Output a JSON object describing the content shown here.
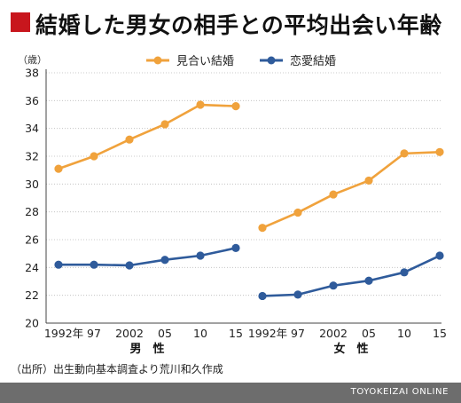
{
  "header": {
    "title": "結婚した男女の相手との平均出会い年齢"
  },
  "source": "（出所）出生動向基本調査より荒川和久作成",
  "brand": "TOYOKEIZAI ONLINE",
  "colors": {
    "title_accent": "#c8161d",
    "miai": "#f0a23c",
    "renai": "#2f5b9b",
    "axis": "#444444",
    "grid": "#bbbbbb",
    "footer": "#6d6d6d"
  },
  "chart_data": {
    "type": "line",
    "ylabel": "（歳）",
    "ylim": [
      20,
      38
    ],
    "yticks": [
      20,
      22,
      24,
      26,
      28,
      30,
      32,
      34,
      36,
      38
    ],
    "grid": true,
    "legend_position": "top-center",
    "legend": [
      "見合い結婚",
      "恋愛結婚"
    ],
    "groups": [
      {
        "label": "男　性",
        "categories": [
          "1992年",
          "97",
          "2002",
          "05",
          "10",
          "15"
        ],
        "series": [
          {
            "name": "見合い結婚",
            "values": [
              31.1,
              32.0,
              33.2,
              34.3,
              35.7,
              35.6
            ]
          },
          {
            "name": "恋愛結婚",
            "values": [
              24.2,
              24.2,
              24.15,
              24.55,
              24.85,
              25.4
            ]
          }
        ]
      },
      {
        "label": "女　性",
        "categories": [
          "1992年",
          "97",
          "2002",
          "05",
          "10",
          "15"
        ],
        "series": [
          {
            "name": "見合い結婚",
            "values": [
              26.85,
              27.95,
              29.25,
              30.25,
              32.2,
              32.3
            ]
          },
          {
            "name": "恋愛結婚",
            "values": [
              21.95,
              22.05,
              22.7,
              23.05,
              23.65,
              24.85
            ]
          }
        ]
      }
    ]
  }
}
